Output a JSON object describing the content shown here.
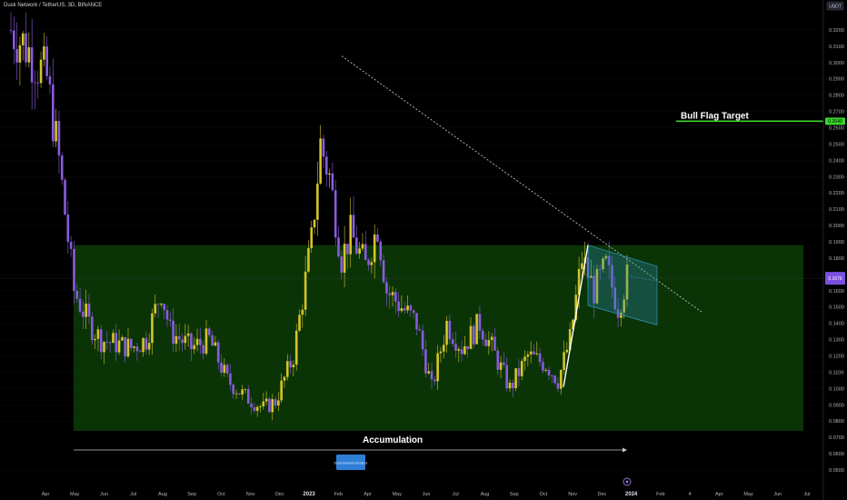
{
  "header": {
    "symbol_line": "Dusk Network / TetherUS, 3D, BINANCE"
  },
  "currency_badge": "USDT",
  "price_tags": {
    "target": "0.2640",
    "current": "0.1676"
  },
  "annotations": {
    "bull_flag_target": "Bull Flag Target",
    "accumulation": "Accumulation",
    "note_box": "Dusk Network Breakout"
  },
  "colors": {
    "bull": "#d4c42a",
    "bear": "#8a5be0",
    "zone": "#0c3a07",
    "target_line": "#39d62b",
    "flag": "#2a8db0",
    "current_tag": "#7b4fe0"
  },
  "chart_data": {
    "type": "candlestick",
    "y_axis": {
      "min": 0.05,
      "max": 0.325,
      "ticks": [
        0.05,
        0.06,
        0.07,
        0.08,
        0.09,
        0.1,
        0.11,
        0.12,
        0.13,
        0.14,
        0.15,
        0.16,
        0.17,
        0.18,
        0.19,
        0.2,
        0.21,
        0.22,
        0.23,
        0.24,
        0.25,
        0.26,
        0.27,
        0.28,
        0.29,
        0.3,
        0.31,
        0.32
      ]
    },
    "x_axis": {
      "labels": [
        "Apr",
        "May",
        "Jun",
        "Jul",
        "Aug",
        "Sep",
        "Oct",
        "Nov",
        "Dec",
        "2023",
        "Feb",
        "Apr",
        "May",
        "Jun",
        "Jul",
        "Aug",
        "Sep",
        "Oct",
        "Nov",
        "Dec",
        "2024",
        "Feb",
        "4",
        "Apr",
        "May",
        "Jun",
        "Jul"
      ],
      "strong": [
        "2023",
        "2024"
      ]
    },
    "accumulation_zone": {
      "low": 0.074,
      "high": 0.188
    },
    "target_level": 0.264,
    "current_price": 0.1676,
    "trendline": {
      "start": 0.304,
      "end": 0.147
    },
    "flagpole": {
      "low": 0.101,
      "high": 0.188
    },
    "flag_channel": {
      "upper_start": 0.188,
      "upper_end": 0.175,
      "lower_start": 0.151,
      "lower_end": 0.139
    },
    "anchors": [
      {
        "i": 0,
        "p": 0.32
      },
      {
        "i": 5,
        "p": 0.31
      },
      {
        "i": 12,
        "p": 0.29
      },
      {
        "i": 16,
        "p": 0.24
      },
      {
        "i": 21,
        "p": 0.16
      },
      {
        "i": 26,
        "p": 0.14
      },
      {
        "i": 30,
        "p": 0.13
      },
      {
        "i": 40,
        "p": 0.125
      },
      {
        "i": 45,
        "p": 0.13
      },
      {
        "i": 50,
        "p": 0.16
      },
      {
        "i": 53,
        "p": 0.135
      },
      {
        "i": 60,
        "p": 0.125
      },
      {
        "i": 66,
        "p": 0.13
      },
      {
        "i": 72,
        "p": 0.105
      },
      {
        "i": 78,
        "p": 0.095
      },
      {
        "i": 84,
        "p": 0.088
      },
      {
        "i": 88,
        "p": 0.092
      },
      {
        "i": 94,
        "p": 0.12
      },
      {
        "i": 100,
        "p": 0.19
      },
      {
        "i": 103,
        "p": 0.25
      },
      {
        "i": 106,
        "p": 0.23
      },
      {
        "i": 110,
        "p": 0.18
      },
      {
        "i": 113,
        "p": 0.195
      },
      {
        "i": 118,
        "p": 0.175
      },
      {
        "i": 122,
        "p": 0.2
      },
      {
        "i": 125,
        "p": 0.16
      },
      {
        "i": 130,
        "p": 0.15
      },
      {
        "i": 135,
        "p": 0.14
      },
      {
        "i": 140,
        "p": 0.1
      },
      {
        "i": 145,
        "p": 0.14
      },
      {
        "i": 150,
        "p": 0.125
      },
      {
        "i": 156,
        "p": 0.14
      },
      {
        "i": 160,
        "p": 0.125
      },
      {
        "i": 166,
        "p": 0.1
      },
      {
        "i": 172,
        "p": 0.12
      },
      {
        "i": 178,
        "p": 0.115
      },
      {
        "i": 182,
        "p": 0.105
      },
      {
        "i": 186,
        "p": 0.13
      },
      {
        "i": 190,
        "p": 0.18
      },
      {
        "i": 194,
        "p": 0.16
      },
      {
        "i": 198,
        "p": 0.175
      },
      {
        "i": 202,
        "p": 0.15
      },
      {
        "i": 205,
        "p": 0.168
      }
    ]
  }
}
